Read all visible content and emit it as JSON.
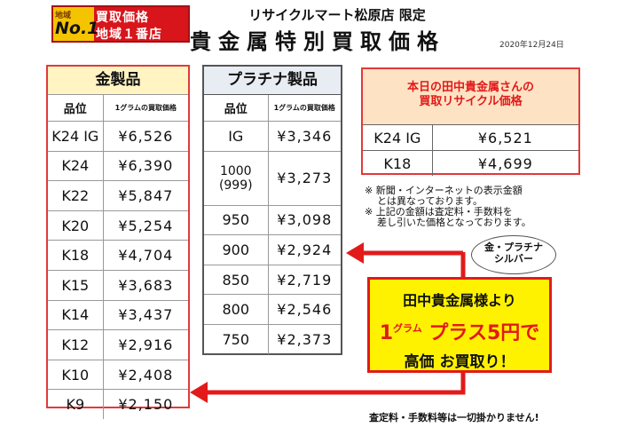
{
  "badge": {
    "area": "地域",
    "number": "No.1",
    "line1": "買取価格",
    "line2": "地域１番店"
  },
  "header": {
    "store": "リサイクルマート松原店 限定",
    "title": "貴金属特別買取価格",
    "date": "2020年12月24日"
  },
  "gold": {
    "title": "金製品",
    "col_grade": "品位",
    "col_price": "1グラムの買取価格",
    "rows": [
      {
        "grade": "K24 IG",
        "price": "¥6,526"
      },
      {
        "grade": "K24",
        "price": "¥6,390"
      },
      {
        "grade": "K22",
        "price": "¥5,847"
      },
      {
        "grade": "K20",
        "price": "¥5,254"
      },
      {
        "grade": "K18",
        "price": "¥4,704"
      },
      {
        "grade": "K15",
        "price": "¥3,683"
      },
      {
        "grade": "K14",
        "price": "¥3,437"
      },
      {
        "grade": "K12",
        "price": "¥2,916"
      },
      {
        "grade": "K10",
        "price": "¥2,408"
      },
      {
        "grade": "K9",
        "price": "¥2,150"
      }
    ]
  },
  "platinum": {
    "title": "プラチナ製品",
    "col_grade": "品位",
    "col_price": "1グラムの買取価格",
    "rows": [
      {
        "grade": "IG",
        "price": "¥3,346"
      },
      {
        "grade": "1000",
        "grade2": "(999)",
        "price": "¥3,273"
      },
      {
        "grade": "950",
        "price": "¥3,098"
      },
      {
        "grade": "900",
        "price": "¥2,924"
      },
      {
        "grade": "850",
        "price": "¥2,719"
      },
      {
        "grade": "800",
        "price": "¥2,546"
      },
      {
        "grade": "750",
        "price": "¥2,373"
      }
    ]
  },
  "today": {
    "line1": "本日の田中貴金属さんの",
    "line2": "買取リサイクル価格",
    "rows": [
      {
        "grade": "K24 IG",
        "price": "¥6,521"
      },
      {
        "grade": "K18",
        "price": "¥4,699"
      }
    ]
  },
  "notes": {
    "line1": "※ 新聞・インターネットの表示金額",
    "line2": "とは異なっております。",
    "line3": "※ 上記の金額は査定料・手数料を",
    "line4": "差し引いた価格となっております。"
  },
  "bubble": {
    "line1": "金・プラチナ",
    "line2": "シルバー"
  },
  "promo": {
    "line1": "田中貴金属様より",
    "line2_a": "1",
    "line2_unit": "グラム",
    "line2_b": " プラス5円で",
    "line3": "高価 お買取り！"
  },
  "footer": "査定料・手数料等は一切掛かりません!",
  "colors": {
    "accent_red": "#e21a1a",
    "promo_yellow": "#fff200",
    "gold_header": "#fff4c2",
    "platinum_header": "#e8edf3"
  }
}
